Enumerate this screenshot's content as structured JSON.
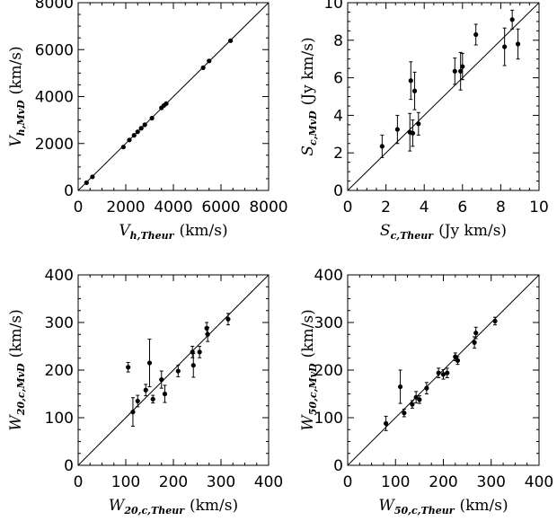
{
  "chart_data": [
    {
      "type": "scatter",
      "xlim": [
        0,
        8000
      ],
      "ylim": [
        0,
        8000
      ],
      "xticks": [
        "0",
        "2000",
        "4000",
        "6000",
        "8000"
      ],
      "yticks": [
        "0",
        "2000",
        "4000",
        "6000",
        "8000"
      ],
      "xlabel": {
        "symbol": "V",
        "sub": "h,Theur",
        "unit": "(km/s)"
      },
      "ylabel": {
        "symbol": "V",
        "sub": "h,MvD",
        "unit": "(km/s)"
      },
      "reference_line": "y = x",
      "points": [
        {
          "x": 350,
          "y": 330
        },
        {
          "x": 600,
          "y": 580
        },
        {
          "x": 1900,
          "y": 1850
        },
        {
          "x": 2150,
          "y": 2150
        },
        {
          "x": 2350,
          "y": 2350
        },
        {
          "x": 2500,
          "y": 2500
        },
        {
          "x": 2650,
          "y": 2650
        },
        {
          "x": 2800,
          "y": 2800
        },
        {
          "x": 3100,
          "y": 3080
        },
        {
          "x": 3500,
          "y": 3520
        },
        {
          "x": 3600,
          "y": 3620
        },
        {
          "x": 3700,
          "y": 3700
        },
        {
          "x": 5250,
          "y": 5230
        },
        {
          "x": 5500,
          "y": 5520
        },
        {
          "x": 6400,
          "y": 6380
        }
      ]
    },
    {
      "type": "scatter",
      "xlim": [
        0,
        10
      ],
      "ylim": [
        0,
        10
      ],
      "xticks": [
        "0",
        "2",
        "4",
        "6",
        "8",
        "10"
      ],
      "yticks": [
        "0",
        "2",
        "4",
        "6",
        "8",
        "10"
      ],
      "xlabel": {
        "symbol": "S",
        "sub": "c,Theur",
        "unit": "(Jy km/s)"
      },
      "ylabel": {
        "symbol": "S",
        "sub": "c,MvD",
        "unit": "(Jy km/s)"
      },
      "reference_line": "y = x",
      "points": [
        {
          "x": 1.8,
          "y": 2.35,
          "err": 0.6
        },
        {
          "x": 2.6,
          "y": 3.25,
          "err": 0.75
        },
        {
          "x": 3.25,
          "y": 3.1,
          "err": 1.0
        },
        {
          "x": 3.3,
          "y": 5.85,
          "err": 1.0
        },
        {
          "x": 3.4,
          "y": 3.05,
          "err": 0.7
        },
        {
          "x": 3.5,
          "y": 5.3,
          "err": 1.0
        },
        {
          "x": 3.7,
          "y": 3.55,
          "err": 0.6
        },
        {
          "x": 5.6,
          "y": 6.35,
          "err": 0.7
        },
        {
          "x": 5.9,
          "y": 6.35,
          "err": 1.0
        },
        {
          "x": 6.0,
          "y": 6.6,
          "err": 0.7
        },
        {
          "x": 6.7,
          "y": 8.3,
          "err": 0.55
        },
        {
          "x": 8.2,
          "y": 7.65,
          "err": 1.0
        },
        {
          "x": 8.6,
          "y": 9.1,
          "err": 0.5
        },
        {
          "x": 8.9,
          "y": 7.8,
          "err": 0.8
        }
      ]
    },
    {
      "type": "scatter",
      "xlim": [
        0,
        400
      ],
      "ylim": [
        0,
        400
      ],
      "xticks": [
        "0",
        "100",
        "200",
        "300",
        "400"
      ],
      "yticks": [
        "0",
        "100",
        "200",
        "300",
        "400"
      ],
      "xlabel": {
        "symbol": "W",
        "sub": "20,c,Theur",
        "unit": "(km/s)"
      },
      "ylabel": {
        "symbol": "W",
        "sub": "20,c,MvD",
        "unit": "(km/s)"
      },
      "reference_line": "y = x",
      "points": [
        {
          "x": 105,
          "y": 206,
          "err": 10
        },
        {
          "x": 115,
          "y": 112,
          "err": 30
        },
        {
          "x": 125,
          "y": 135,
          "err": 12
        },
        {
          "x": 142,
          "y": 158,
          "err": 12
        },
        {
          "x": 150,
          "y": 215,
          "err": 50
        },
        {
          "x": 157,
          "y": 139,
          "err": 8
        },
        {
          "x": 175,
          "y": 180,
          "err": 18
        },
        {
          "x": 182,
          "y": 150,
          "err": 18
        },
        {
          "x": 210,
          "y": 198,
          "err": 12
        },
        {
          "x": 240,
          "y": 238,
          "err": 12
        },
        {
          "x": 242,
          "y": 210,
          "err": 25
        },
        {
          "x": 255,
          "y": 238,
          "err": 12
        },
        {
          "x": 270,
          "y": 288,
          "err": 12
        },
        {
          "x": 272,
          "y": 275,
          "err": 15
        },
        {
          "x": 315,
          "y": 307,
          "err": 12
        }
      ]
    },
    {
      "type": "scatter",
      "xlim": [
        0,
        400
      ],
      "ylim": [
        0,
        400
      ],
      "xticks": [
        "0",
        "100",
        "200",
        "300",
        "400"
      ],
      "yticks": [
        "0",
        "100",
        "200",
        "300",
        "400"
      ],
      "xlabel": {
        "symbol": "W",
        "sub": "50,c,Theur",
        "unit": "(km/s)"
      },
      "ylabel": {
        "symbol": "W",
        "sub": "50,c,MvD",
        "unit": "(km/s)"
      },
      "reference_line": "y = x",
      "points": [
        {
          "x": 80,
          "y": 88,
          "err": 15
        },
        {
          "x": 110,
          "y": 165,
          "err": 35
        },
        {
          "x": 118,
          "y": 110,
          "err": 8
        },
        {
          "x": 135,
          "y": 128,
          "err": 8
        },
        {
          "x": 143,
          "y": 143,
          "err": 12
        },
        {
          "x": 150,
          "y": 138,
          "err": 8
        },
        {
          "x": 165,
          "y": 162,
          "err": 12
        },
        {
          "x": 190,
          "y": 194,
          "err": 10
        },
        {
          "x": 200,
          "y": 191,
          "err": 10
        },
        {
          "x": 208,
          "y": 194,
          "err": 10
        },
        {
          "x": 225,
          "y": 228,
          "err": 8
        },
        {
          "x": 230,
          "y": 220,
          "err": 8
        },
        {
          "x": 265,
          "y": 258,
          "err": 12
        },
        {
          "x": 268,
          "y": 278,
          "err": 12
        },
        {
          "x": 308,
          "y": 303,
          "err": 8
        }
      ]
    }
  ]
}
